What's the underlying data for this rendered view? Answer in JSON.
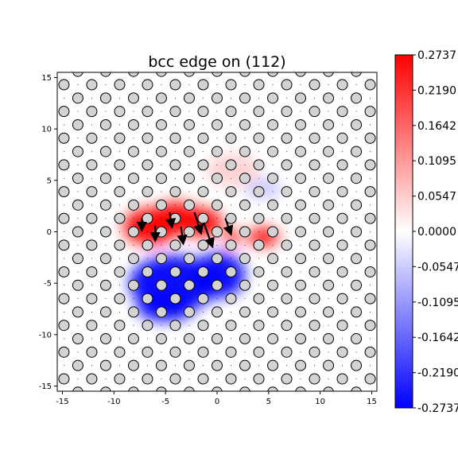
{
  "chart_data": {
    "type": "scatter",
    "title": "bcc edge on (112)",
    "xlabel": "",
    "ylabel": "",
    "xlim": [
      -15.5,
      15.5
    ],
    "ylim": [
      -15.5,
      15.5
    ],
    "xticks": [
      -15,
      -10,
      -5,
      0,
      5,
      10,
      15
    ],
    "yticks": [
      -15,
      -10,
      -5,
      0,
      5,
      10,
      15
    ],
    "atom_lattice": {
      "x_spacing": 2.7,
      "y_spacing": 1.3,
      "row_shift": 1.35,
      "fill": "#d3d3d3",
      "edge": "#000000"
    },
    "displacement_arrows": [
      {
        "x": -7.3,
        "y": 1.3,
        "dx": 0.0,
        "dy": -1.0
      },
      {
        "x": -6.0,
        "y": 0.6,
        "dx": 0.0,
        "dy": -1.3
      },
      {
        "x": -4.6,
        "y": 1.9,
        "dx": 0.2,
        "dy": -1.3
      },
      {
        "x": -3.5,
        "y": 0.5,
        "dx": 0.2,
        "dy": -1.5
      },
      {
        "x": -2.2,
        "y": 1.9,
        "dx": 0.6,
        "dy": -1.9
      },
      {
        "x": -1.3,
        "y": 0.9,
        "dx": 0.8,
        "dy": -2.2
      },
      {
        "x": 0.8,
        "y": 1.3,
        "dx": 0.5,
        "dy": -1.4
      }
    ],
    "colorbar": {
      "min": -0.2737,
      "max": 0.2737,
      "colormap": "bwr",
      "tick_values": [
        0.2737,
        0.219,
        0.1642,
        0.1095,
        0.0547,
        0.0,
        -0.0547,
        -0.1095,
        -0.1642,
        -0.219,
        -0.2737
      ],
      "tick_labels": [
        "0.2737",
        "0.2190",
        "0.1642",
        "0.1095",
        "0.0547",
        "0.0000",
        "-0.0547",
        "-0.1095",
        "-0.1642",
        "-0.2190",
        "-0.2737"
      ]
    },
    "field_blobs": [
      {
        "cx": -6.5,
        "cy": 0.5,
        "rx": 2.6,
        "ry": 1.8,
        "value": 0.2737
      },
      {
        "cx": -4.0,
        "cy": 1.3,
        "rx": 2.4,
        "ry": 1.6,
        "value": 0.2737
      },
      {
        "cx": -1.5,
        "cy": 0.9,
        "rx": 2.0,
        "ry": 1.4,
        "value": 0.2737
      },
      {
        "cx": 4.5,
        "cy": -0.5,
        "rx": 1.5,
        "ry": 0.9,
        "value": 0.2737
      },
      {
        "cx": 1.5,
        "cy": -0.5,
        "rx": 0.8,
        "ry": 0.8,
        "value": 0.24
      },
      {
        "cx": -4.2,
        "cy": -5.0,
        "rx": 4.3,
        "ry": 2.7,
        "value": -0.2737
      },
      {
        "cx": 0.2,
        "cy": -4.2,
        "rx": 2.5,
        "ry": 2.2,
        "value": -0.2737
      },
      {
        "cx": -5.0,
        "cy": -7.3,
        "rx": 2.8,
        "ry": 1.4,
        "value": -0.2737
      },
      {
        "cx": 4.5,
        "cy": 4.2,
        "rx": 1.8,
        "ry": 1.0,
        "value": -0.06
      },
      {
        "cx": 1.5,
        "cy": 6.0,
        "rx": 2.6,
        "ry": 1.6,
        "value": 0.05
      }
    ]
  }
}
